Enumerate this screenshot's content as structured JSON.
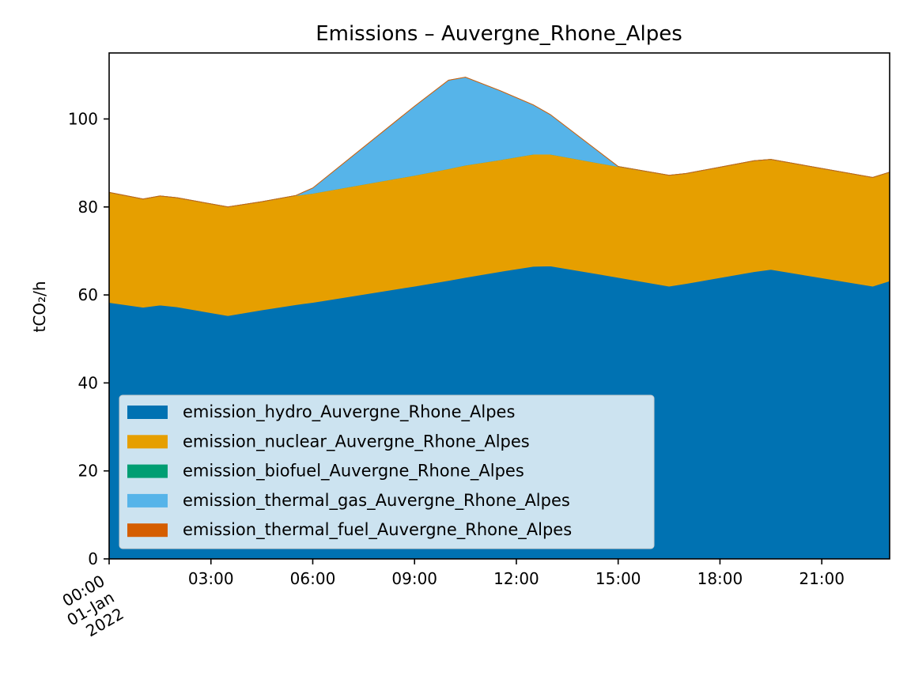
{
  "chart_data": {
    "type": "area",
    "stacked": true,
    "title": "Emissions – Auvergne_Rhone_Alpes",
    "xlabel": "",
    "ylabel": "tCO₂/h",
    "xlim": [
      "2022-01-01T00:00",
      "2022-01-01T23:00"
    ],
    "ylim": [
      0,
      115
    ],
    "yticks": [
      0,
      20,
      40,
      60,
      80,
      100
    ],
    "xtick_labels": [
      "03:00",
      "06:00",
      "09:00",
      "12:00",
      "15:00",
      "18:00",
      "21:00"
    ],
    "first_xtick_label": [
      "00:00",
      "01-Jan",
      "2022"
    ],
    "x": [
      "00:00",
      "01:00",
      "01:30",
      "02:00",
      "03:30",
      "04:30",
      "05:30",
      "06:00",
      "09:00",
      "10:00",
      "10:30",
      "11:30",
      "12:30",
      "13:00",
      "15:00",
      "16:30",
      "17:00",
      "19:00",
      "19:30",
      "22:30",
      "23:00"
    ],
    "series": [
      {
        "name": "emission_hydro_Auvergne_Rhone_Alpes",
        "color": "#0072B2",
        "values": [
          58.3,
          57.2,
          57.7,
          57.3,
          55.3,
          56.6,
          57.8,
          58.3,
          62.0,
          63.3,
          64.0,
          65.3,
          66.5,
          66.6,
          64.0,
          62.0,
          62.6,
          65.3,
          65.8,
          62.0,
          63.2
        ]
      },
      {
        "name": "emission_nuclear_Auvergne_Rhone_Alpes",
        "color": "#E69F00",
        "values": [
          25.0,
          24.6,
          24.8,
          24.8,
          24.7,
          24.6,
          24.8,
          24.8,
          25.2,
          25.4,
          25.5,
          25.4,
          25.5,
          25.4,
          25.2,
          25.2,
          25.0,
          25.2,
          25.0,
          24.7,
          24.7
        ]
      },
      {
        "name": "emission_biofuel_Auvergne_Rhone_Alpes",
        "color": "#009E73",
        "values": [
          0,
          0,
          0,
          0,
          0,
          0,
          0,
          0,
          0,
          0,
          0,
          0,
          0,
          0,
          0,
          0,
          0,
          0,
          0,
          0,
          0
        ]
      },
      {
        "name": "emission_thermal_gas_Auvergne_Rhone_Alpes",
        "color": "#56B4E9",
        "values": [
          0,
          0,
          0,
          0,
          0,
          0,
          0,
          1.2,
          15.7,
          20.1,
          20.0,
          15.8,
          11.2,
          9.0,
          0,
          0,
          0,
          0,
          0,
          0,
          0
        ]
      },
      {
        "name": "emission_thermal_fuel_Auvergne_Rhone_Alpes",
        "color": "#D55E00",
        "values": [
          0,
          0,
          0,
          0,
          0,
          0,
          0,
          0,
          0,
          0,
          0,
          0,
          0,
          0,
          0,
          0,
          0,
          0,
          0,
          0,
          0
        ]
      }
    ],
    "legend_position": "lower-left",
    "grid": false
  }
}
